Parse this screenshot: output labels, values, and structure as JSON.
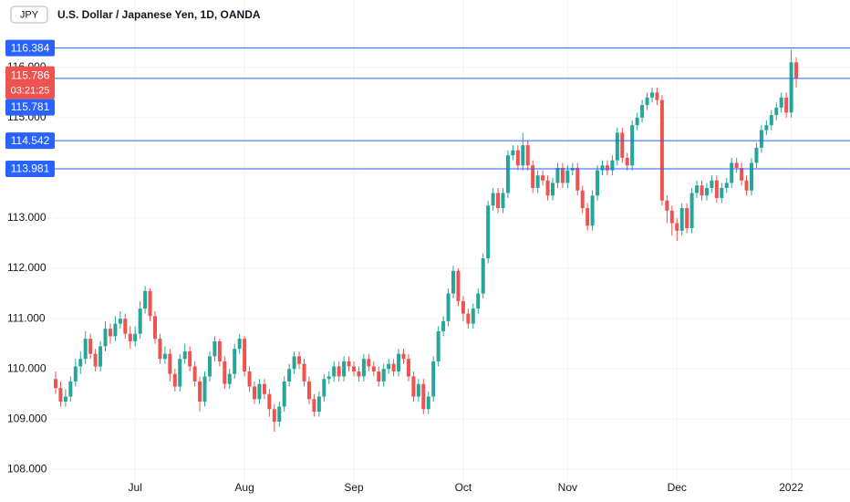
{
  "chart_data": {
    "type": "candlestick",
    "symbol": "JPY",
    "title": "U.S. Dollar / Japanese Yen, 1D, OANDA",
    "up_color": "#26a69a",
    "down_color": "#ef5350",
    "line_color": "#2962ff",
    "grid": true,
    "ylim": [
      107.77,
      117.34
    ],
    "yticks": [
      {
        "value": 108,
        "label": "108.000"
      },
      {
        "value": 109,
        "label": "109.000"
      },
      {
        "value": 110,
        "label": "110.000"
      },
      {
        "value": 111,
        "label": "111.000"
      },
      {
        "value": 112,
        "label": "112.000"
      },
      {
        "value": 113,
        "label": "113.000"
      },
      {
        "value": 114,
        "label": "114.000"
      },
      {
        "value": 115,
        "label": "115.000"
      },
      {
        "value": 116,
        "label": "116.000"
      }
    ],
    "price_lines": [
      116.384,
      115.781,
      114.542,
      113.981
    ],
    "last_price": 115.786,
    "countdown": "03:21:25",
    "categories": [
      null,
      null,
      null,
      null,
      null,
      null,
      null,
      null,
      null,
      null,
      null,
      null,
      null,
      null,
      null,
      null,
      "Jul",
      null,
      null,
      null,
      null,
      null,
      null,
      null,
      null,
      null,
      null,
      null,
      null,
      null,
      null,
      null,
      null,
      null,
      null,
      null,
      null,
      null,
      "Aug",
      null,
      null,
      null,
      null,
      null,
      null,
      null,
      null,
      null,
      null,
      null,
      null,
      null,
      null,
      null,
      null,
      null,
      null,
      null,
      null,
      null,
      "Sep",
      null,
      null,
      null,
      null,
      null,
      null,
      null,
      null,
      null,
      null,
      null,
      null,
      null,
      null,
      null,
      null,
      null,
      null,
      null,
      null,
      null,
      "Oct",
      null,
      null,
      null,
      null,
      null,
      null,
      null,
      null,
      null,
      null,
      null,
      null,
      null,
      null,
      null,
      null,
      null,
      null,
      null,
      null,
      "Nov",
      null,
      null,
      null,
      null,
      null,
      null,
      null,
      null,
      null,
      null,
      null,
      null,
      null,
      null,
      null,
      null,
      null,
      null,
      null,
      null,
      null,
      "Dec",
      null,
      null,
      null,
      null,
      null,
      null,
      null,
      null,
      null,
      null,
      null,
      null,
      null,
      null,
      null,
      null,
      null,
      null,
      null,
      null,
      null,
      null,
      "2022",
      null
    ],
    "candles": [
      [
        109.8,
        109.95,
        109.5,
        109.62
      ],
      [
        109.62,
        109.75,
        109.25,
        109.35
      ],
      [
        109.35,
        109.6,
        109.25,
        109.45
      ],
      [
        109.45,
        109.85,
        109.35,
        109.75
      ],
      [
        109.75,
        110.2,
        109.65,
        110.05
      ],
      [
        110.05,
        110.35,
        109.9,
        110.2
      ],
      [
        110.2,
        110.75,
        110.1,
        110.6
      ],
      [
        110.6,
        110.7,
        110.2,
        110.3
      ],
      [
        110.3,
        110.4,
        109.95,
        110.05
      ],
      [
        110.05,
        110.55,
        109.95,
        110.45
      ],
      [
        110.45,
        110.95,
        110.35,
        110.8
      ],
      [
        110.8,
        110.9,
        110.5,
        110.65
      ],
      [
        110.65,
        111.05,
        110.55,
        110.9
      ],
      [
        110.9,
        111.15,
        110.8,
        111.0
      ],
      [
        111.0,
        111.1,
        110.6,
        110.7
      ],
      [
        110.7,
        110.85,
        110.4,
        110.55
      ],
      [
        110.55,
        110.85,
        110.45,
        110.7
      ],
      [
        110.7,
        111.35,
        110.6,
        111.2
      ],
      [
        111.2,
        111.65,
        111.1,
        111.55
      ],
      [
        111.55,
        111.6,
        110.95,
        111.05
      ],
      [
        111.05,
        111.15,
        110.5,
        110.6
      ],
      [
        110.6,
        110.7,
        110.1,
        110.2
      ],
      [
        110.2,
        110.45,
        110.1,
        110.3
      ],
      [
        110.3,
        110.4,
        109.75,
        109.9
      ],
      [
        109.9,
        110.0,
        109.55,
        109.65
      ],
      [
        109.65,
        110.3,
        109.55,
        110.2
      ],
      [
        110.2,
        110.5,
        110.1,
        110.35
      ],
      [
        110.35,
        110.45,
        109.95,
        110.05
      ],
      [
        110.05,
        110.15,
        109.65,
        109.75
      ],
      [
        109.75,
        109.85,
        109.15,
        109.35
      ],
      [
        109.35,
        109.95,
        109.25,
        109.85
      ],
      [
        109.85,
        110.35,
        109.75,
        110.25
      ],
      [
        110.25,
        110.65,
        110.15,
        110.55
      ],
      [
        110.55,
        110.6,
        110.05,
        110.15
      ],
      [
        110.15,
        110.25,
        109.6,
        109.7
      ],
      [
        109.7,
        110.0,
        109.6,
        109.9
      ],
      [
        109.9,
        110.5,
        109.8,
        110.4
      ],
      [
        110.4,
        110.7,
        110.3,
        110.6
      ],
      [
        110.6,
        110.65,
        109.85,
        109.95
      ],
      [
        109.95,
        110.05,
        109.55,
        109.65
      ],
      [
        109.65,
        109.75,
        109.3,
        109.4
      ],
      [
        109.4,
        109.8,
        109.3,
        109.7
      ],
      [
        109.7,
        109.8,
        109.4,
        109.5
      ],
      [
        109.5,
        109.6,
        109.05,
        109.2
      ],
      [
        109.2,
        109.3,
        108.75,
        108.95
      ],
      [
        108.95,
        109.35,
        108.85,
        109.25
      ],
      [
        109.25,
        109.85,
        109.15,
        109.75
      ],
      [
        109.75,
        110.1,
        109.65,
        110.0
      ],
      [
        110.0,
        110.35,
        109.9,
        110.25
      ],
      [
        110.25,
        110.35,
        110.0,
        110.1
      ],
      [
        110.1,
        110.2,
        109.65,
        109.75
      ],
      [
        109.75,
        109.85,
        109.3,
        109.4
      ],
      [
        109.4,
        109.5,
        109.05,
        109.15
      ],
      [
        109.15,
        109.55,
        109.05,
        109.45
      ],
      [
        109.45,
        109.9,
        109.35,
        109.8
      ],
      [
        109.8,
        109.95,
        109.7,
        109.85
      ],
      [
        109.85,
        110.15,
        109.75,
        110.05
      ],
      [
        110.05,
        110.15,
        109.75,
        109.85
      ],
      [
        109.85,
        110.25,
        109.75,
        110.15
      ],
      [
        110.15,
        110.25,
        109.95,
        110.05
      ],
      [
        110.05,
        110.15,
        109.85,
        109.95
      ],
      [
        109.95,
        110.05,
        109.75,
        109.85
      ],
      [
        109.85,
        110.3,
        109.75,
        110.2
      ],
      [
        110.2,
        110.3,
        109.95,
        110.05
      ],
      [
        110.05,
        110.15,
        109.85,
        109.95
      ],
      [
        109.95,
        110.05,
        109.65,
        109.75
      ],
      [
        109.75,
        110.1,
        109.65,
        110.0
      ],
      [
        110.0,
        110.2,
        109.9,
        110.1
      ],
      [
        110.1,
        110.2,
        109.85,
        109.95
      ],
      [
        109.95,
        110.4,
        109.85,
        110.3
      ],
      [
        110.3,
        110.4,
        110.1,
        110.2
      ],
      [
        110.2,
        110.3,
        109.75,
        109.85
      ],
      [
        109.85,
        109.95,
        109.35,
        109.45
      ],
      [
        109.45,
        109.8,
        109.35,
        109.7
      ],
      [
        109.7,
        109.8,
        109.1,
        109.2
      ],
      [
        109.2,
        109.55,
        109.1,
        109.45
      ],
      [
        109.45,
        110.25,
        109.35,
        110.15
      ],
      [
        110.15,
        110.85,
        110.05,
        110.75
      ],
      [
        110.75,
        111.05,
        110.65,
        110.95
      ],
      [
        110.95,
        111.6,
        110.85,
        111.5
      ],
      [
        111.5,
        112.05,
        111.4,
        111.95
      ],
      [
        111.95,
        112.0,
        111.25,
        111.35
      ],
      [
        111.35,
        111.45,
        110.95,
        111.1
      ],
      [
        111.1,
        111.2,
        110.8,
        110.9
      ],
      [
        110.9,
        111.3,
        110.8,
        111.2
      ],
      [
        111.2,
        111.6,
        111.1,
        111.5
      ],
      [
        111.5,
        112.3,
        111.4,
        112.2
      ],
      [
        112.2,
        113.35,
        112.1,
        113.25
      ],
      [
        113.25,
        113.6,
        113.15,
        113.5
      ],
      [
        113.5,
        113.6,
        113.1,
        113.2
      ],
      [
        113.2,
        113.6,
        113.1,
        113.5
      ],
      [
        113.5,
        114.35,
        113.4,
        114.25
      ],
      [
        114.25,
        114.45,
        114.15,
        114.35
      ],
      [
        114.35,
        114.45,
        113.95,
        114.05
      ],
      [
        114.05,
        114.7,
        113.95,
        114.45
      ],
      [
        114.45,
        114.55,
        113.95,
        114.05
      ],
      [
        114.05,
        114.15,
        113.5,
        113.6
      ],
      [
        113.6,
        113.95,
        113.5,
        113.85
      ],
      [
        113.85,
        113.95,
        113.65,
        113.75
      ],
      [
        113.75,
        113.85,
        113.35,
        113.45
      ],
      [
        113.45,
        113.8,
        113.35,
        113.7
      ],
      [
        113.7,
        114.1,
        113.6,
        114.0
      ],
      [
        114.0,
        114.1,
        113.6,
        113.7
      ],
      [
        113.7,
        114.05,
        113.6,
        113.95
      ],
      [
        113.95,
        114.1,
        113.85,
        114.0
      ],
      [
        114.0,
        114.1,
        113.45,
        113.55
      ],
      [
        113.55,
        113.65,
        113.1,
        113.2
      ],
      [
        113.2,
        113.3,
        112.75,
        112.85
      ],
      [
        112.85,
        113.55,
        112.75,
        113.45
      ],
      [
        113.45,
        114.05,
        113.35,
        113.95
      ],
      [
        113.95,
        114.15,
        113.85,
        114.05
      ],
      [
        114.05,
        114.15,
        113.85,
        113.95
      ],
      [
        113.95,
        114.25,
        113.85,
        114.15
      ],
      [
        114.15,
        114.8,
        114.05,
        114.7
      ],
      [
        114.7,
        114.8,
        114.1,
        114.2
      ],
      [
        114.2,
        114.3,
        113.95,
        114.05
      ],
      [
        114.05,
        114.95,
        113.95,
        114.85
      ],
      [
        114.85,
        115.1,
        114.75,
        115.0
      ],
      [
        115.0,
        115.35,
        114.9,
        115.25
      ],
      [
        115.25,
        115.5,
        115.15,
        115.4
      ],
      [
        115.4,
        115.6,
        115.3,
        115.5
      ],
      [
        115.5,
        115.6,
        115.25,
        115.35
      ],
      [
        115.35,
        115.45,
        113.25,
        113.35
      ],
      [
        113.35,
        113.45,
        112.9,
        113.15
      ],
      [
        113.15,
        113.25,
        112.65,
        112.9
      ],
      [
        112.9,
        113.0,
        112.55,
        112.75
      ],
      [
        112.75,
        113.3,
        112.65,
        113.2
      ],
      [
        113.2,
        113.3,
        112.7,
        112.8
      ],
      [
        112.8,
        113.6,
        112.7,
        113.5
      ],
      [
        113.5,
        113.75,
        113.4,
        113.65
      ],
      [
        113.65,
        113.75,
        113.35,
        113.45
      ],
      [
        113.45,
        113.7,
        113.35,
        113.6
      ],
      [
        113.6,
        113.85,
        113.5,
        113.75
      ],
      [
        113.75,
        113.85,
        113.3,
        113.4
      ],
      [
        113.4,
        113.7,
        113.3,
        113.6
      ],
      [
        113.6,
        113.8,
        113.5,
        113.7
      ],
      [
        113.7,
        114.2,
        113.6,
        114.1
      ],
      [
        114.1,
        114.2,
        113.9,
        114.0
      ],
      [
        114.0,
        114.1,
        113.65,
        113.75
      ],
      [
        113.75,
        113.85,
        113.45,
        113.55
      ],
      [
        113.55,
        114.2,
        113.45,
        114.1
      ],
      [
        114.1,
        114.5,
        114.0,
        114.4
      ],
      [
        114.4,
        114.85,
        114.3,
        114.75
      ],
      [
        114.75,
        114.95,
        114.65,
        114.85
      ],
      [
        114.85,
        115.15,
        114.75,
        115.05
      ],
      [
        115.05,
        115.3,
        114.95,
        115.2
      ],
      [
        115.2,
        115.5,
        115.1,
        115.4
      ],
      [
        115.4,
        115.5,
        115.0,
        115.1
      ],
      [
        115.1,
        116.35,
        115.0,
        116.1
      ],
      [
        116.1,
        116.2,
        115.6,
        115.786
      ]
    ]
  }
}
